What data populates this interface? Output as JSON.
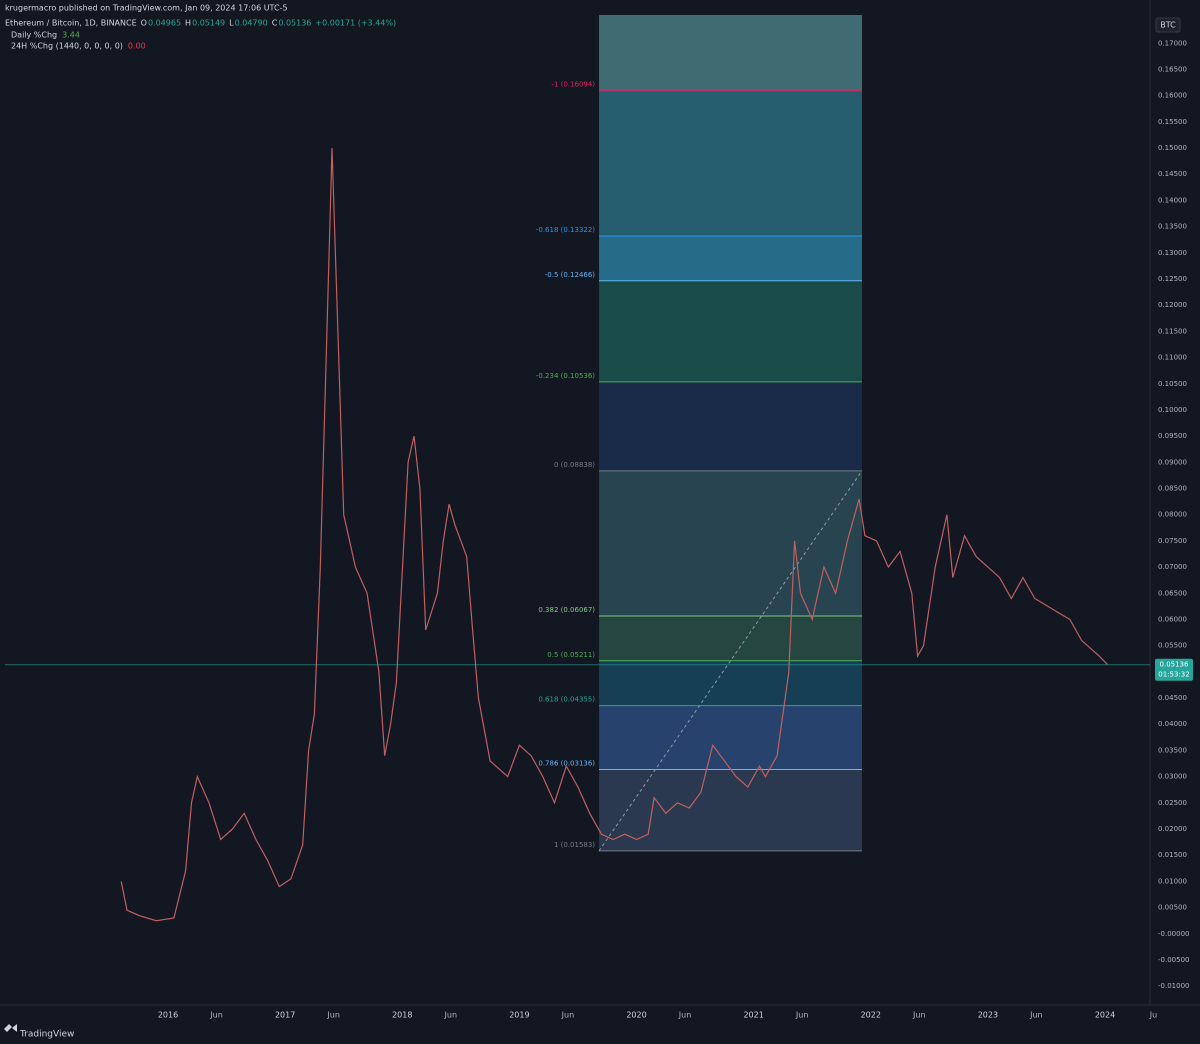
{
  "header": {
    "publisher": "krugermacro published on TradingView.com, Jan 09, 2024 17:06 UTC-5",
    "symbol": "Ethereum / Bitcoin, 1D, BINANCE",
    "ohlc": [
      {
        "key": "O",
        "value": "0.04965"
      },
      {
        "key": "H",
        "value": "0.05149"
      },
      {
        "key": "L",
        "value": "0.04790"
      },
      {
        "key": "C",
        "value": "0.05136"
      }
    ],
    "change": "+0.00171 (+3.44%)",
    "indicators": [
      {
        "name": "Daily %Chg",
        "value": "3.44"
      },
      {
        "name": "24H %Chg (1440, 0, 0, 0, 0)",
        "value": "0.00"
      }
    ],
    "currency": "BTC",
    "brand": "TradingView"
  },
  "chart_data": {
    "type": "line",
    "color": "#c0605f",
    "grid": false,
    "xlim": [
      2014.608,
      2024.384
    ],
    "ylim": [
      -0.0136,
      0.1754
    ],
    "xticks": [
      {
        "value": 2016,
        "label": "2016"
      },
      {
        "value": 2016.414,
        "label": "Jun"
      },
      {
        "value": 2017,
        "label": "2017"
      },
      {
        "value": 2017.414,
        "label": "Jun"
      },
      {
        "value": 2018,
        "label": "2018"
      },
      {
        "value": 2018.414,
        "label": "Jun"
      },
      {
        "value": 2019,
        "label": "2019"
      },
      {
        "value": 2019.414,
        "label": "Jun"
      },
      {
        "value": 2020,
        "label": "2020"
      },
      {
        "value": 2020.414,
        "label": "Jun"
      },
      {
        "value": 2021,
        "label": "2021"
      },
      {
        "value": 2021.414,
        "label": "Jun"
      },
      {
        "value": 2022,
        "label": "2022"
      },
      {
        "value": 2022.414,
        "label": "Jun"
      },
      {
        "value": 2023,
        "label": "2023"
      },
      {
        "value": 2023.414,
        "label": "Jun"
      },
      {
        "value": 2024,
        "label": "2024"
      },
      {
        "value": 2024.414,
        "label": "Ju"
      }
    ],
    "yticks": [
      {
        "value": -0.01,
        "label": "-0.01000"
      },
      {
        "value": -0.005,
        "label": "-0.00500"
      },
      {
        "value": 0,
        "label": "-0.00000"
      },
      {
        "value": 0.005,
        "label": "0.00500"
      },
      {
        "value": 0.01,
        "label": "0.01000"
      },
      {
        "value": 0.015,
        "label": "0.01500"
      },
      {
        "value": 0.02,
        "label": "0.02000"
      },
      {
        "value": 0.025,
        "label": "0.02500"
      },
      {
        "value": 0.03,
        "label": "0.03000"
      },
      {
        "value": 0.035,
        "label": "0.03500"
      },
      {
        "value": 0.04,
        "label": "0.04000"
      },
      {
        "value": 0.045,
        "label": "0.04500"
      },
      {
        "value": 0.05,
        "label": "0.05000"
      },
      {
        "value": 0.055,
        "label": "0.05500"
      },
      {
        "value": 0.06,
        "label": "0.06000"
      },
      {
        "value": 0.065,
        "label": "0.06500"
      },
      {
        "value": 0.07,
        "label": "0.07000"
      },
      {
        "value": 0.075,
        "label": "0.07500"
      },
      {
        "value": 0.08,
        "label": "0.08000"
      },
      {
        "value": 0.085,
        "label": "0.08500"
      },
      {
        "value": 0.09,
        "label": "0.09000"
      },
      {
        "value": 0.095,
        "label": "0.09500"
      },
      {
        "value": 0.1,
        "label": "0.10000"
      },
      {
        "value": 0.105,
        "label": "0.10500"
      },
      {
        "value": 0.11,
        "label": "0.11000"
      },
      {
        "value": 0.115,
        "label": "0.11500"
      },
      {
        "value": 0.12,
        "label": "0.12000"
      },
      {
        "value": 0.125,
        "label": "0.12500"
      },
      {
        "value": 0.13,
        "label": "0.13000"
      },
      {
        "value": 0.135,
        "label": "0.13500"
      },
      {
        "value": 0.14,
        "label": "0.14000"
      },
      {
        "value": 0.145,
        "label": "0.14500"
      },
      {
        "value": 0.15,
        "label": "0.15000"
      },
      {
        "value": 0.155,
        "label": "0.15500"
      },
      {
        "value": 0.16,
        "label": "0.16000"
      },
      {
        "value": 0.165,
        "label": "0.16500"
      },
      {
        "value": 0.17,
        "label": "0.17000"
      }
    ],
    "series": [
      {
        "name": "ETHBTC",
        "color": "#c0605f",
        "x": [
          2015.6,
          2015.65,
          2015.75,
          2015.9,
          2016.05,
          2016.15,
          2016.2,
          2016.25,
          2016.35,
          2016.45,
          2016.55,
          2016.65,
          2016.75,
          2016.85,
          2016.95,
          2017.05,
          2017.15,
          2017.2,
          2017.25,
          2017.3,
          2017.35,
          2017.4,
          2017.45,
          2017.5,
          2017.55,
          2017.6,
          2017.7,
          2017.8,
          2017.85,
          2017.9,
          2017.95,
          2018.05,
          2018.1,
          2018.15,
          2018.2,
          2018.3,
          2018.35,
          2018.4,
          2018.45,
          2018.55,
          2018.6,
          2018.65,
          2018.75,
          2018.9,
          2019.0,
          2019.1,
          2019.2,
          2019.3,
          2019.4,
          2019.5,
          2019.6,
          2019.7,
          2019.8,
          2019.9,
          2020.0,
          2020.1,
          2020.15,
          2020.25,
          2020.35,
          2020.45,
          2020.55,
          2020.65,
          2020.75,
          2020.85,
          2020.95,
          2021.05,
          2021.1,
          2021.2,
          2021.3,
          2021.35,
          2021.4,
          2021.5,
          2021.6,
          2021.7,
          2021.8,
          2021.9,
          2021.95,
          2022.05,
          2022.15,
          2022.25,
          2022.35,
          2022.4,
          2022.45,
          2022.55,
          2022.65,
          2022.7,
          2022.8,
          2022.9,
          2023.0,
          2023.1,
          2023.2,
          2023.3,
          2023.4,
          2023.55,
          2023.7,
          2023.8,
          2023.95,
          2024.02
        ],
        "values": [
          0.01,
          0.0045,
          0.0035,
          0.0025,
          0.003,
          0.012,
          0.025,
          0.03,
          0.025,
          0.018,
          0.02,
          0.023,
          0.018,
          0.014,
          0.009,
          0.0105,
          0.017,
          0.035,
          0.042,
          0.07,
          0.11,
          0.15,
          0.115,
          0.08,
          0.075,
          0.07,
          0.065,
          0.05,
          0.034,
          0.04,
          0.048,
          0.09,
          0.095,
          0.085,
          0.058,
          0.065,
          0.075,
          0.082,
          0.078,
          0.072,
          0.058,
          0.045,
          0.033,
          0.03,
          0.036,
          0.034,
          0.03,
          0.025,
          0.032,
          0.028,
          0.023,
          0.019,
          0.018,
          0.019,
          0.018,
          0.019,
          0.026,
          0.023,
          0.025,
          0.024,
          0.027,
          0.036,
          0.033,
          0.03,
          0.028,
          0.032,
          0.03,
          0.034,
          0.05,
          0.075,
          0.065,
          0.06,
          0.07,
          0.065,
          0.075,
          0.083,
          0.076,
          0.075,
          0.07,
          0.073,
          0.065,
          0.053,
          0.055,
          0.07,
          0.08,
          0.068,
          0.076,
          0.072,
          0.07,
          0.068,
          0.064,
          0.068,
          0.064,
          0.062,
          0.06,
          0.056,
          0.053,
          0.0514
        ]
      }
    ],
    "last_price": {
      "value": 0.05136,
      "label": "0.05136"
    },
    "countdown": "01:53:32",
    "fib": {
      "x_range": [
        2019.68,
        2021.925
      ],
      "levels": [
        {
          "label": "1 (0.01583)",
          "value": 0.01583,
          "color": "#787b86",
          "fill": "#2f4058"
        },
        {
          "label": "0.786 (0.03136)",
          "value": 0.03136,
          "color": "#64b5f6",
          "fill": "#2b4a7a"
        },
        {
          "label": "0.618 (0.04355)",
          "value": 0.04355,
          "color": "#26a69a",
          "fill": "#17465e"
        },
        {
          "label": "0.5 (0.05211)",
          "value": 0.05211,
          "color": "#4caf50",
          "fill": "#294f46"
        },
        {
          "label": "0.382 (0.06067)",
          "value": 0.06067,
          "color": "#81c784",
          "fill": "#2d4c58"
        },
        {
          "label": "0 (0.08838)",
          "value": 0.08838,
          "color": "#787b86",
          "fill": "#1b2f50"
        },
        {
          "label": "-0.234 (0.10536)",
          "value": 0.10536,
          "color": "#4caf50",
          "fill": "#1b5550"
        },
        {
          "label": "-0.5 (0.12466)",
          "value": 0.12466,
          "color": "#64b5f6",
          "fill": "#2a7a9a"
        },
        {
          "label": "-0.618 (0.13322)",
          "value": 0.13322,
          "color": "#2196f3",
          "fill": "#2a6a7c"
        },
        {
          "label": "-1 (0.16094)",
          "value": 0.16094,
          "color": "#e91e63",
          "fill": "#4a7a80"
        }
      ]
    }
  }
}
